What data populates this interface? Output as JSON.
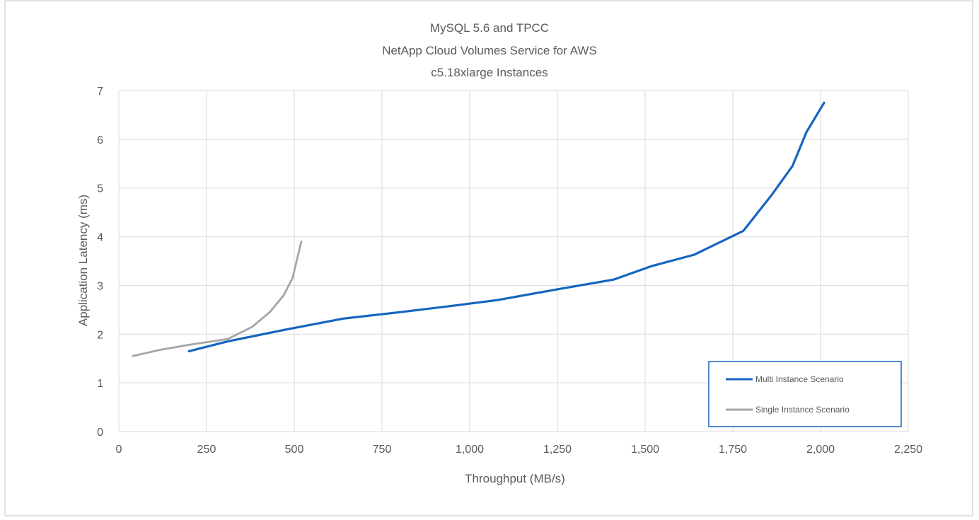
{
  "chart_data": {
    "type": "line",
    "title": [
      "MySQL 5.6 and TPCC",
      "NetApp Cloud Volumes Service for AWS",
      "c5.18xlarge Instances"
    ],
    "xlabel": "Throughput (MB/s)",
    "ylabel": "Application Latency (ms)",
    "xlim": [
      0,
      2250
    ],
    "ylim": [
      0,
      7
    ],
    "x_ticks": [
      0,
      250,
      500,
      750,
      1000,
      1250,
      1500,
      1750,
      2000,
      2250
    ],
    "x_tick_labels": [
      "0",
      "250",
      "500",
      "750",
      "1,000",
      "1,250",
      "1,500",
      "1,750",
      "2,000",
      "2,250"
    ],
    "y_ticks": [
      0,
      1,
      2,
      3,
      4,
      5,
      6,
      7
    ],
    "y_tick_labels": [
      "0",
      "1",
      "2",
      "3",
      "4",
      "5",
      "6",
      "7"
    ],
    "grid": true,
    "legend_position": "bottom-right",
    "series": [
      {
        "name": "Multi Instance Scenario",
        "color": "#1565C0",
        "points": [
          [
            200,
            1.65
          ],
          [
            310,
            1.85
          ],
          [
            480,
            2.1
          ],
          [
            640,
            2.32
          ],
          [
            800,
            2.45
          ],
          [
            950,
            2.58
          ],
          [
            1080,
            2.7
          ],
          [
            1250,
            2.92
          ],
          [
            1410,
            3.12
          ],
          [
            1520,
            3.4
          ],
          [
            1640,
            3.63
          ],
          [
            1780,
            4.12
          ],
          [
            1860,
            4.85
          ],
          [
            1920,
            5.45
          ],
          [
            1960,
            6.15
          ],
          [
            2010,
            6.75
          ]
        ]
      },
      {
        "name": "Single Instance Scenario",
        "color": "#A5A5A5",
        "points": [
          [
            40,
            1.55
          ],
          [
            120,
            1.68
          ],
          [
            200,
            1.78
          ],
          [
            310,
            1.9
          ],
          [
            380,
            2.15
          ],
          [
            430,
            2.45
          ],
          [
            470,
            2.8
          ],
          [
            495,
            3.15
          ],
          [
            510,
            3.6
          ],
          [
            520,
            3.9
          ]
        ]
      }
    ]
  }
}
